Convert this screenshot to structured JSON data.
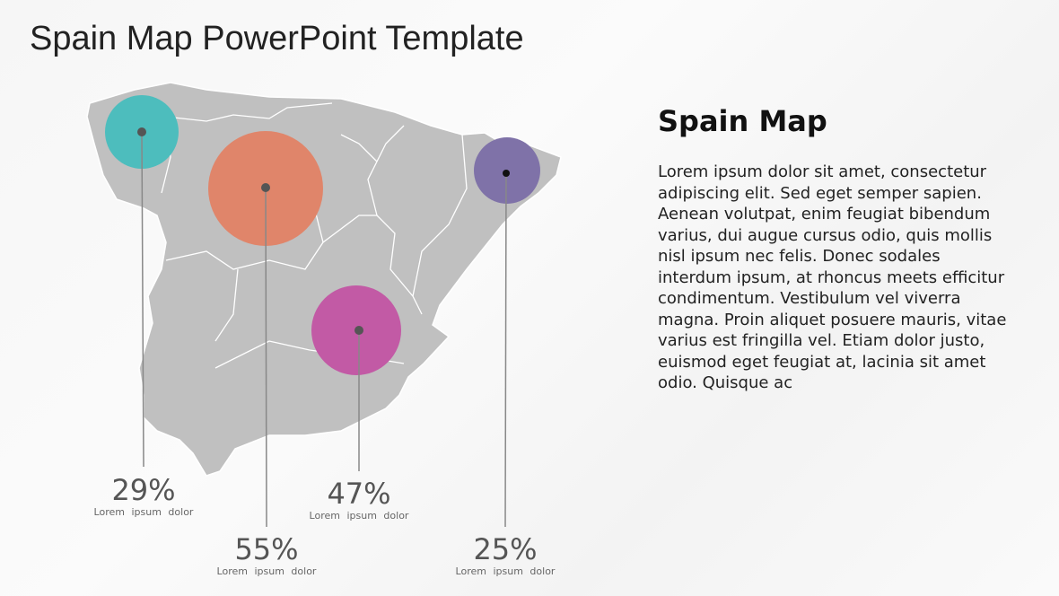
{
  "title": "Spain Map PowerPoint Template",
  "colors": {
    "map": "#c0c0c0",
    "galicia": "#4dbdbd",
    "castilla_leon": "#e0856a",
    "castilla_la_mancha": "#c25aa5",
    "cataluna": "#7f72a8"
  },
  "markers": [
    {
      "region": "galicia",
      "value": "29%",
      "label": "Lorem ipsum dolor"
    },
    {
      "region": "castilla_leon",
      "value": "55%",
      "label": "Lorem ipsum dolor"
    },
    {
      "region": "castilla_la_mancha",
      "value": "47%",
      "label": "Lorem ipsum dolor"
    },
    {
      "region": "cataluna",
      "value": "25%",
      "label": "Lorem ipsum dolor"
    }
  ],
  "side": {
    "heading": "Spain Map",
    "text": "Lorem ipsum dolor sit amet, consectetur adipiscing elit. Sed eget semper sapien. Aenean volutpat, enim feugiat bibendum varius, dui augue cursus odio, quis mollis nisl ipsum nec felis. Donec sodales interdum ipsum, at rhoncus meets efficitur condimentum.  Vestibulum vel viverra magna. Proin aliquet posuere mauris, vitae varius est fringilla vel. Etiam dolor justo, euismod eget feugiat at, lacinia sit amet odio. Quisque ac"
  }
}
